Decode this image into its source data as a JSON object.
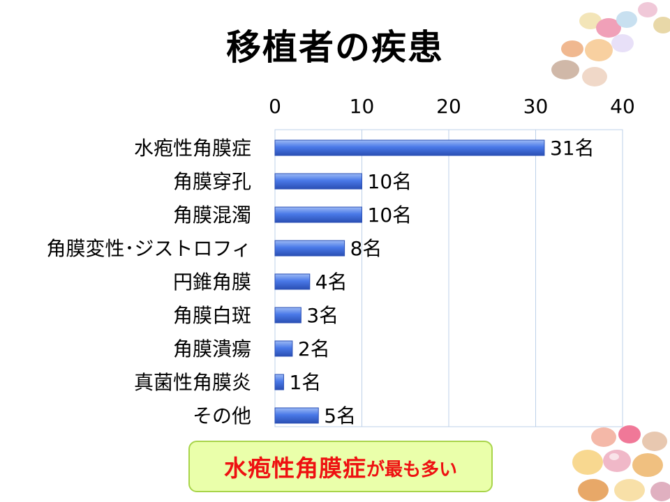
{
  "slide": {
    "title": "移植者の疾患"
  },
  "callout": {
    "main": "水疱性角膜症",
    "rest": "が最も多い"
  },
  "colors": {
    "bar": "#4a79e8",
    "bar_edge": "#2a4fb4",
    "callout_text": "#ee1111",
    "callout_bg": "#eaffaa",
    "grid": "#bcd0e8"
  },
  "chart_data": {
    "type": "bar",
    "orientation": "horizontal",
    "categories": [
      "水疱性角膜症",
      "角膜穿孔",
      "角膜混濁",
      "角膜変性･ジストロフィ",
      "円錐角膜",
      "角膜白斑",
      "角膜潰瘍",
      "真菌性角膜炎",
      "その他"
    ],
    "values": [
      31,
      10,
      10,
      8,
      4,
      3,
      2,
      1,
      5
    ],
    "data_labels": [
      "31名",
      "10名",
      "10名",
      "8名",
      "4名",
      "3名",
      "2名",
      "1名",
      "5名"
    ],
    "xlim": [
      0,
      40
    ],
    "xticks": [
      "0",
      "10",
      "20",
      "30",
      "40"
    ],
    "axis_position": "top",
    "grid": true,
    "legend": "none"
  }
}
